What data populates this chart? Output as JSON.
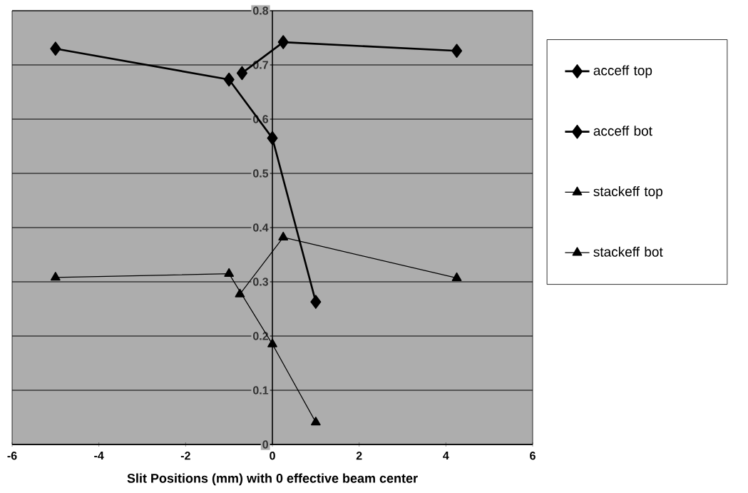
{
  "chart_data": {
    "type": "line",
    "xlabel": "Slit Positions (mm) with 0 effective beam center",
    "series": [
      {
        "name": "acceff top",
        "color": "#000000",
        "marker": "diamond",
        "x": [
          -5,
          -1,
          0,
          1
        ],
        "values": [
          0.73,
          0.673,
          0.565,
          0.263
        ]
      },
      {
        "name": "acceff bot",
        "color": "#000000",
        "marker": "diamond",
        "x": [
          -0.7,
          0.25,
          4.25
        ],
        "values": [
          0.685,
          0.742,
          0.726
        ]
      },
      {
        "name": "stackeff top",
        "color": "#000000",
        "marker": "triangle",
        "x": [
          -5,
          -1,
          0,
          1
        ],
        "values": [
          0.308,
          0.315,
          0.185,
          0.041
        ]
      },
      {
        "name": "stackeff bot",
        "color": "#000000",
        "marker": "triangle",
        "x": [
          -0.75,
          0.25,
          4.25
        ],
        "values": [
          0.277,
          0.382,
          0.307
        ]
      }
    ],
    "xlim": [
      -6,
      6
    ],
    "xticks": [
      -6,
      -4,
      -2,
      0,
      2,
      4,
      6
    ],
    "ylim": [
      0,
      0.8
    ],
    "yticks": [
      0,
      0.1,
      0.2,
      0.3,
      0.4,
      0.5,
      0.6,
      0.7,
      0.8
    ],
    "grid": "y",
    "legend": "right",
    "line_style": "solid"
  }
}
